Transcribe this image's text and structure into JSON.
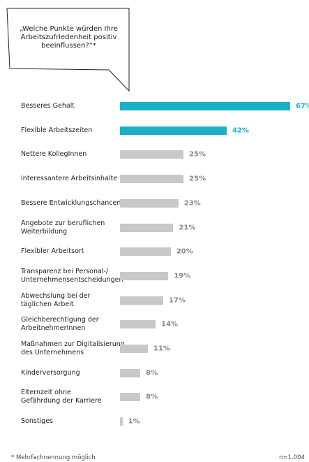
{
  "chart_data": {
    "type": "bar",
    "orientation": "horizontal",
    "title": "„Welche Punkte würden Ihre\nArbeitszufriedenheit positiv\nbeeinflussen?“*",
    "categories": [
      "Besseres Gehalt",
      "Flexible Arbeitszeiten",
      "Nettere KollegInnen",
      "Interessantere Arbeitsinhalte",
      "Bessere Entwicklungschancen",
      "Angebote zur beruflichen\nWeiterbildung",
      "Flexibler Arbeitsort",
      "Transparenz bei Personal-/\nUnternehmensentscheidungen",
      "Abwechslung bei der\ntäglichen Arbeit",
      "Gleichberechtigung der\nArbeitnehmerInnen",
      "Maßnahmen zur Digitalisierung\ndes Unternehmens",
      "Kinderversorgung",
      "Elternzeit ohne\nGefährdung der Karriere",
      "Sonstiges"
    ],
    "values": [
      67,
      42,
      25,
      25,
      23,
      21,
      20,
      19,
      17,
      14,
      11,
      8,
      8,
      1
    ],
    "value_labels": [
      "67%",
      "42%",
      "25%",
      "25%",
      "23%",
      "21%",
      "20%",
      "19%",
      "17%",
      "14%",
      "11%",
      "8%",
      "8%",
      "1%"
    ],
    "colors": [
      "#1ab0c8",
      "#1ab0c8",
      "#c8c8c8",
      "#c8c8c8",
      "#c8c8c8",
      "#c8c8c8",
      "#c8c8c8",
      "#c8c8c8",
      "#c8c8c8",
      "#c8c8c8",
      "#c8c8c8",
      "#c8c8c8",
      "#c8c8c8",
      "#c8c8c8"
    ],
    "footnote": "* Mehrfachnennung möglich",
    "sample": "n=1.004"
  }
}
